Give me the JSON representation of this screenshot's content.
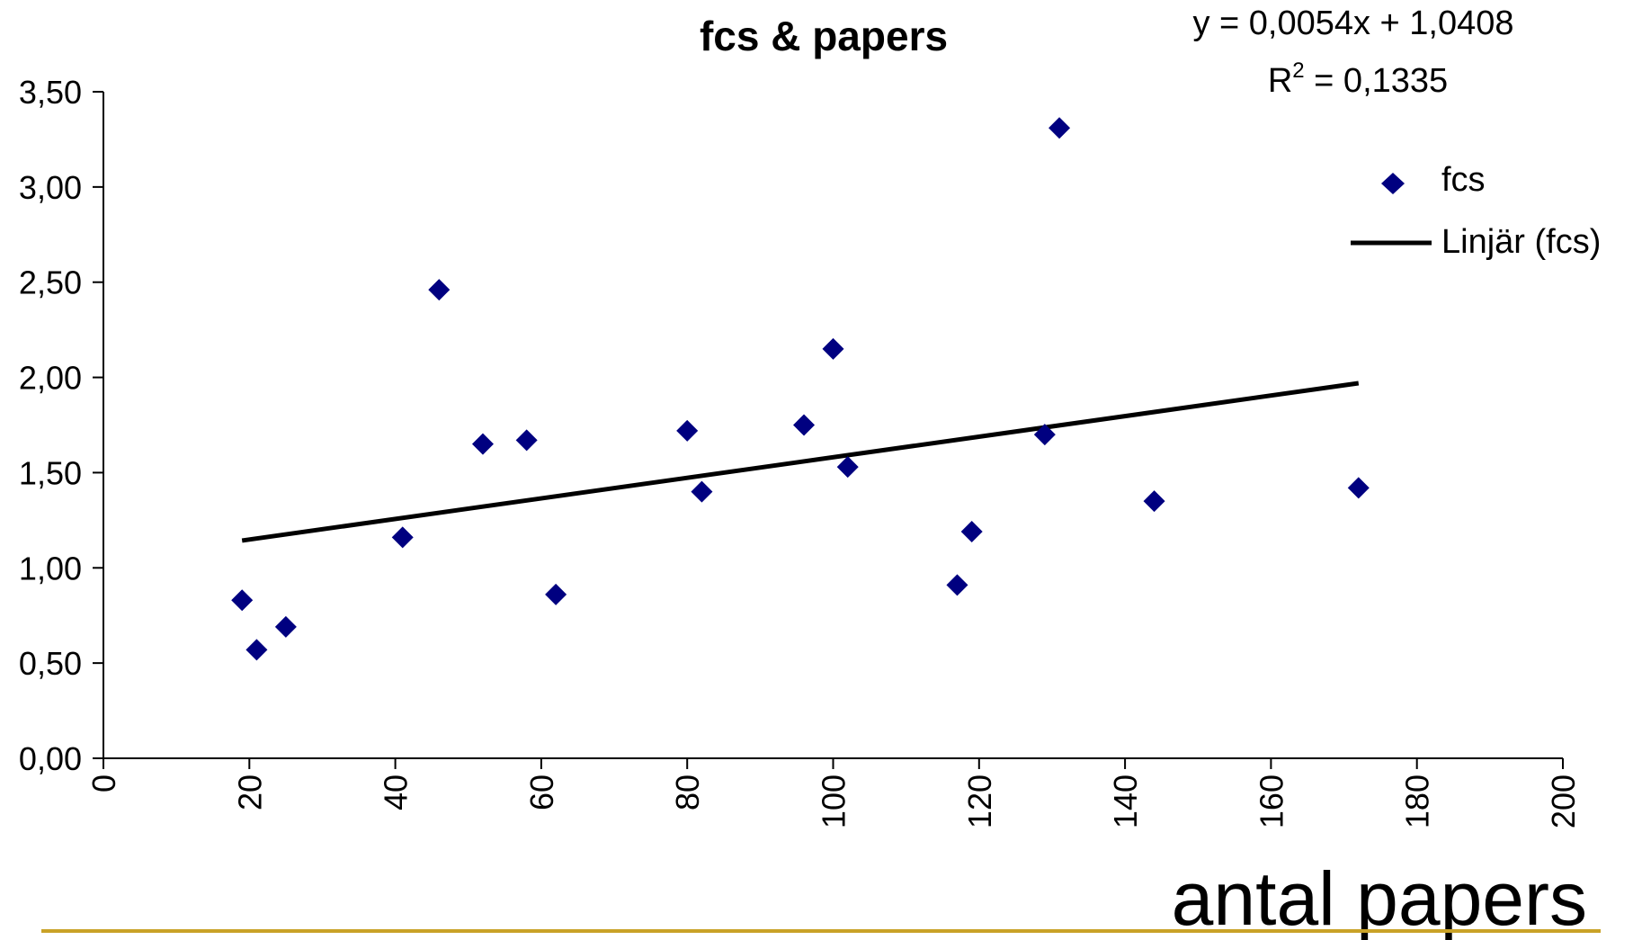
{
  "chart_data": {
    "type": "scatter",
    "title": "fcs & papers",
    "xlabel": "antal papers",
    "ylabel": "",
    "xlim": [
      0,
      200
    ],
    "ylim": [
      0,
      3.5
    ],
    "x_ticks": [
      "0",
      "20",
      "40",
      "60",
      "80",
      "100",
      "120",
      "140",
      "160",
      "180",
      "200"
    ],
    "y_ticks": [
      "0,00",
      "0,50",
      "1,00",
      "1,50",
      "2,00",
      "2,50",
      "3,00",
      "3,50"
    ],
    "grid": false,
    "legend_position": "right",
    "series": [
      {
        "name": "fcs",
        "kind": "points",
        "marker": "diamond",
        "color": "#000080",
        "points": [
          [
            19,
            0.83
          ],
          [
            21,
            0.57
          ],
          [
            25,
            0.69
          ],
          [
            41,
            1.16
          ],
          [
            46,
            2.46
          ],
          [
            52,
            1.65
          ],
          [
            58,
            1.67
          ],
          [
            62,
            0.86
          ],
          [
            80,
            1.72
          ],
          [
            82,
            1.4
          ],
          [
            96,
            1.75
          ],
          [
            100,
            2.15
          ],
          [
            102,
            1.53
          ],
          [
            117,
            0.91
          ],
          [
            119,
            1.19
          ],
          [
            129,
            1.7
          ],
          [
            131,
            3.31
          ],
          [
            144,
            1.35
          ],
          [
            172,
            1.42
          ]
        ]
      },
      {
        "name": "Linjär (fcs)",
        "kind": "trendline",
        "color": "#000000",
        "slope": 0.0054,
        "intercept": 1.0408,
        "x_range": [
          19,
          172
        ]
      }
    ],
    "annotations": {
      "equation": "y = 0,0054x + 1,0408",
      "r2_prefix": "R",
      "r2_sup": "2",
      "r2_value": " = 0,1335"
    }
  },
  "colors": {
    "point": "#000080",
    "trendline": "#000000",
    "axis": "#000000",
    "underline": "#C9A227"
  }
}
